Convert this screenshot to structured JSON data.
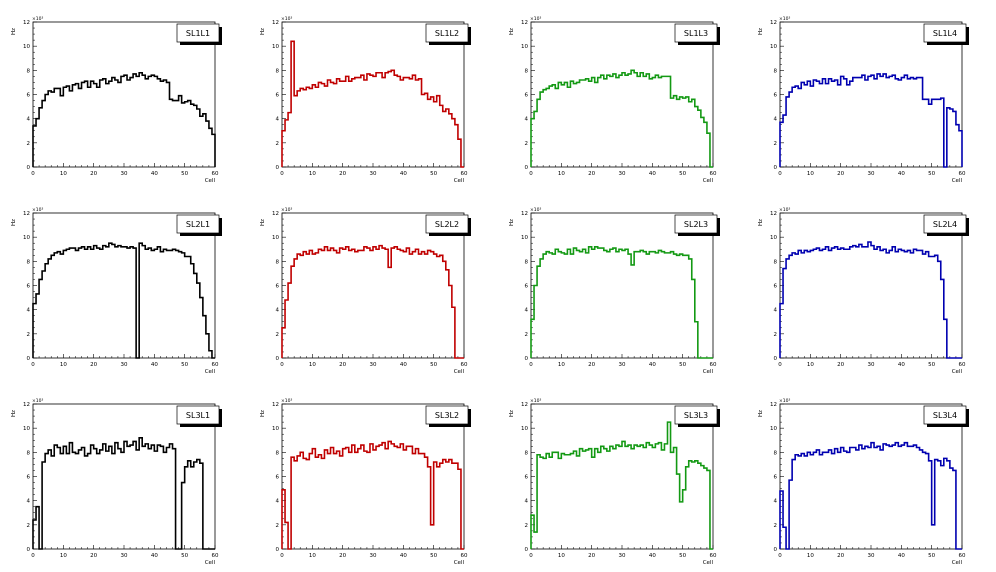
{
  "chart_data": [
    {
      "type": "histogram-step",
      "title": "SL1L1",
      "color": "#000000",
      "xlabel": "Cell",
      "ylabel": "Hz",
      "exponent": "×10³",
      "xlim": [
        0,
        60
      ],
      "ylim": [
        0,
        12
      ],
      "xticks": [
        0,
        10,
        20,
        30,
        40,
        50,
        60
      ],
      "yticks": [
        0,
        2,
        4,
        6,
        8,
        10,
        12
      ],
      "values": [
        3.4,
        4,
        4.9,
        5.5,
        6,
        6.3,
        6.2,
        6.5,
        6.5,
        5.9,
        6.6,
        6.7,
        6.3,
        6.8,
        6.9,
        6.5,
        7,
        7.1,
        6.6,
        7.1,
        6.9,
        6.6,
        7.2,
        7.3,
        6.9,
        7.1,
        7.4,
        7.2,
        7,
        7.5,
        7.6,
        7.2,
        7.4,
        7.7,
        7.5,
        7.8,
        7.6,
        7.3,
        7.5,
        7.6,
        7.5,
        7.3,
        7.1,
        7.2,
        7,
        5.6,
        5.5,
        5.5,
        5.9,
        5.3,
        5.4,
        5.5,
        5.2,
        5.1,
        4.8,
        4.2,
        4.4,
        3.8,
        3.2,
        2.7
      ]
    },
    {
      "type": "histogram-step",
      "title": "SL1L2",
      "color": "#c00000",
      "xlabel": "Cell",
      "ylabel": "Hz",
      "exponent": "×10³",
      "xlim": [
        0,
        60
      ],
      "ylim": [
        0,
        12
      ],
      "xticks": [
        0,
        10,
        20,
        30,
        40,
        50,
        60
      ],
      "yticks": [
        0,
        2,
        4,
        6,
        8,
        10,
        12
      ],
      "values": [
        3,
        3.9,
        4.5,
        10.4,
        5.9,
        6.3,
        6.5,
        6.4,
        6.6,
        6.5,
        6.8,
        6.6,
        7,
        6.9,
        6.7,
        7.2,
        7,
        6.9,
        7.3,
        7.1,
        7.1,
        7.5,
        7.1,
        7.3,
        7.4,
        7.4,
        7.6,
        7.2,
        7.7,
        7.6,
        7.5,
        7.8,
        7.8,
        7.4,
        7.8,
        7.9,
        8,
        7.6,
        7.5,
        7.2,
        7.4,
        7.4,
        7.3,
        7.6,
        7.2,
        7.3,
        6,
        6.1,
        5.6,
        5.8,
        5.4,
        5.9,
        5.1,
        4.6,
        4.8,
        4.4,
        4,
        3.5,
        2.3,
        0
      ]
    },
    {
      "type": "histogram-step",
      "title": "SL1L3",
      "color": "#139913",
      "xlabel": "Cell",
      "ylabel": "Hz",
      "exponent": "×10³",
      "xlim": [
        0,
        60
      ],
      "ylim": [
        0,
        12
      ],
      "xticks": [
        0,
        10,
        20,
        30,
        40,
        50,
        60
      ],
      "yticks": [
        0,
        2,
        4,
        6,
        8,
        10,
        12
      ],
      "values": [
        4,
        4.6,
        5.6,
        6.2,
        6.4,
        6.5,
        6.7,
        6.8,
        6.5,
        7,
        6.8,
        7,
        6.6,
        7.1,
        6.9,
        7,
        7.2,
        7.2,
        7.3,
        7.1,
        7.4,
        7,
        7.4,
        7.6,
        7.3,
        7.6,
        7.5,
        7.7,
        7.4,
        7.6,
        7.8,
        7.6,
        7.7,
        8,
        7.8,
        7.5,
        7.8,
        7.5,
        7.7,
        7.3,
        7.4,
        7.6,
        7.4,
        7.5,
        7.5,
        7.5,
        5.7,
        5.9,
        5.6,
        5.8,
        5.7,
        5.8,
        5.4,
        5.6,
        5,
        4.7,
        4.1,
        3.7,
        2.8,
        0
      ]
    },
    {
      "type": "histogram-step",
      "title": "SL1L4",
      "color": "#0000b0",
      "xlabel": "Cell",
      "ylabel": "Hz",
      "exponent": "×10³",
      "xlim": [
        0,
        60
      ],
      "ylim": [
        0,
        12
      ],
      "xticks": [
        0,
        10,
        20,
        30,
        40,
        50,
        60
      ],
      "yticks": [
        0,
        2,
        4,
        6,
        8,
        10,
        12
      ],
      "values": [
        3.7,
        4.3,
        5.8,
        6.2,
        6.6,
        6.7,
        6.5,
        7,
        6.8,
        7.1,
        6.7,
        7.2,
        7.1,
        6.9,
        7.3,
        6.9,
        7.3,
        7.1,
        7.2,
        6.8,
        7.5,
        7.3,
        6.8,
        7.1,
        7.4,
        7.4,
        7.4,
        7.6,
        7.2,
        7.5,
        7.6,
        7.3,
        7.7,
        7.5,
        7.7,
        7.4,
        7.5,
        7.6,
        7.3,
        7.2,
        7.4,
        7.6,
        7.3,
        7.4,
        7.3,
        7.4,
        7.4,
        5.6,
        5.6,
        5.2,
        5.6,
        5.6,
        5.6,
        5.7,
        0,
        4.9,
        4.8,
        4.6,
        3.5,
        3
      ]
    },
    {
      "type": "histogram-step",
      "title": "SL2L1",
      "color": "#000000",
      "xlabel": "Cell",
      "ylabel": "Hz",
      "exponent": "×10³",
      "xlim": [
        0,
        60
      ],
      "ylim": [
        0,
        12
      ],
      "xticks": [
        0,
        10,
        20,
        30,
        40,
        50,
        60
      ],
      "yticks": [
        0,
        2,
        4,
        6,
        8,
        10,
        12
      ],
      "values": [
        4.5,
        5.3,
        6.5,
        7.2,
        7.8,
        8.2,
        8.5,
        8.7,
        8.8,
        8.6,
        8.9,
        9,
        9.1,
        9.1,
        8.9,
        9.1,
        9.2,
        9,
        9.2,
        9,
        9.3,
        9.1,
        9,
        9.3,
        9.2,
        9.5,
        9.4,
        9.2,
        9.3,
        9.2,
        9.2,
        9.1,
        9.2,
        9.1,
        0,
        9.5,
        9.3,
        9,
        9.1,
        8.9,
        9,
        9.2,
        8.8,
        9,
        8.9,
        8.9,
        9,
        8.9,
        8.8,
        8.7,
        8.4,
        8.4,
        7.8,
        7,
        6.2,
        5,
        3.5,
        2,
        0.6,
        0
      ]
    },
    {
      "type": "histogram-step",
      "title": "SL2L2",
      "color": "#c00000",
      "xlabel": "Cell",
      "ylabel": "Hz",
      "exponent": "×10³",
      "xlim": [
        0,
        60
      ],
      "ylim": [
        0,
        12
      ],
      "xticks": [
        0,
        10,
        20,
        30,
        40,
        50,
        60
      ],
      "yticks": [
        0,
        2,
        4,
        6,
        8,
        10,
        12
      ],
      "values": [
        2.5,
        4.8,
        6.2,
        7.6,
        8.2,
        8.6,
        8.5,
        8.8,
        8.6,
        8.9,
        8.6,
        8.7,
        9,
        8.9,
        9.2,
        8.9,
        9.1,
        8.9,
        8.7,
        9.1,
        9,
        9.2,
        8.9,
        9,
        8.8,
        8.9,
        8.9,
        9.2,
        9.1,
        8.9,
        9.2,
        9,
        9.3,
        9.1,
        9,
        7.5,
        9.1,
        9.2,
        9,
        8.9,
        8.8,
        9.1,
        8.6,
        8.8,
        9,
        8.6,
        8.8,
        8.6,
        8.9,
        8.8,
        8.6,
        8.4,
        8.5,
        8,
        7.3,
        6,
        4.2,
        0,
        0,
        0
      ]
    },
    {
      "type": "histogram-step",
      "title": "SL2L3",
      "color": "#139913",
      "xlabel": "Cell",
      "ylabel": "Hz",
      "exponent": "×10³",
      "xlim": [
        0,
        60
      ],
      "ylim": [
        0,
        12
      ],
      "xticks": [
        0,
        10,
        20,
        30,
        40,
        50,
        60
      ],
      "yticks": [
        0,
        2,
        4,
        6,
        8,
        10,
        12
      ],
      "values": [
        3.2,
        6,
        7.6,
        8.2,
        8.6,
        8.8,
        8.7,
        8.6,
        9,
        8.8,
        8.7,
        8.6,
        9,
        8.6,
        9.1,
        8.9,
        8.8,
        9,
        8.7,
        9.2,
        9,
        9.2,
        9.1,
        9.1,
        8.9,
        8.8,
        9,
        9.1,
        8.8,
        9,
        8.9,
        9,
        8.6,
        7.7,
        8.8,
        8.8,
        8.9,
        8.8,
        8.6,
        8.8,
        8.8,
        8.7,
        8.9,
        8.8,
        8.7,
        8.7,
        8.8,
        8.6,
        8.5,
        8.6,
        8.5,
        8.5,
        8.2,
        6.5,
        3,
        0,
        0,
        0,
        0,
        0
      ]
    },
    {
      "type": "histogram-step",
      "title": "SL2L4",
      "color": "#0000b0",
      "xlabel": "Cell",
      "ylabel": "Hz",
      "exponent": "×10³",
      "xlim": [
        0,
        60
      ],
      "ylim": [
        0,
        12
      ],
      "xticks": [
        0,
        10,
        20,
        30,
        40,
        50,
        60
      ],
      "yticks": [
        0,
        2,
        4,
        6,
        8,
        10,
        12
      ],
      "values": [
        4.5,
        7.4,
        8.2,
        8.5,
        8.7,
        8.6,
        8.9,
        8.7,
        8.9,
        8.8,
        8.9,
        9,
        9.1,
        8.9,
        9,
        9.2,
        8.9,
        9.1,
        9.2,
        9,
        9.1,
        9,
        9,
        9.2,
        9.3,
        9.2,
        9.4,
        9.2,
        9.2,
        9.6,
        9.3,
        9,
        9.2,
        8.9,
        9,
        8.7,
        8.9,
        9.2,
        8.8,
        9,
        8.9,
        8.8,
        8.9,
        8.7,
        9,
        8.9,
        8.9,
        8.6,
        8.8,
        8.4,
        8.4,
        8.5,
        8,
        6.5,
        3.2,
        0,
        0,
        0,
        0,
        0
      ]
    },
    {
      "type": "histogram-step",
      "title": "SL3L1",
      "color": "#000000",
      "xlabel": "Cell",
      "ylabel": "Hz",
      "exponent": "×10³",
      "xlim": [
        0,
        60
      ],
      "ylim": [
        0,
        12
      ],
      "xticks": [
        0,
        10,
        20,
        30,
        40,
        50,
        60
      ],
      "yticks": [
        0,
        2,
        4,
        6,
        8,
        10,
        12
      ],
      "values": [
        2.4,
        3.5,
        0,
        7.2,
        7.9,
        8.2,
        7.7,
        8.6,
        8.4,
        7.9,
        8.5,
        7.9,
        8.8,
        8,
        7.9,
        8.2,
        8.4,
        7.7,
        7.9,
        8.6,
        8.3,
        7.9,
        8.2,
        8.7,
        8.1,
        8.5,
        7.9,
        8.8,
        8.3,
        8,
        8.9,
        8.5,
        8.6,
        8.9,
        8.2,
        9.2,
        8.5,
        8.7,
        8.3,
        8.6,
        8.1,
        8.6,
        8.5,
        8,
        8.4,
        8.7,
        8.3,
        0,
        0,
        5.5,
        6.8,
        7.3,
        6.8,
        7.2,
        7.4,
        7.1,
        0,
        0,
        0,
        0
      ]
    },
    {
      "type": "histogram-step",
      "title": "SL3L2",
      "color": "#c00000",
      "xlabel": "Cell",
      "ylabel": "Hz",
      "exponent": "×10³",
      "xlim": [
        0,
        60
      ],
      "ylim": [
        0,
        12
      ],
      "xticks": [
        0,
        10,
        20,
        30,
        40,
        50,
        60
      ],
      "yticks": [
        0,
        2,
        4,
        6,
        8,
        10,
        12
      ],
      "values": [
        4.9,
        2.2,
        0,
        7.6,
        7.3,
        7.7,
        8,
        7.5,
        7.4,
        7.9,
        8.3,
        7.6,
        7.8,
        7.5,
        8.2,
        7.9,
        8.4,
        7.9,
        8.1,
        7.7,
        8.3,
        8.4,
        8,
        8.6,
        8,
        8.3,
        8.6,
        8.1,
        8,
        8.7,
        8.2,
        8.5,
        8.6,
        8.8,
        8.3,
        8.9,
        8.7,
        8.5,
        8.4,
        8.7,
        8.2,
        8.5,
        8.5,
        7.9,
        8.3,
        7.9,
        7.9,
        7.6,
        6.8,
        2,
        7.2,
        6.8,
        7.1,
        7.4,
        7.2,
        7.4,
        7.1,
        7.1,
        6.6,
        0
      ]
    },
    {
      "type": "histogram-step",
      "title": "SL3L3",
      "color": "#139913",
      "xlabel": "Cell",
      "ylabel": "Hz",
      "exponent": "×10³",
      "xlim": [
        0,
        60
      ],
      "ylim": [
        0,
        12
      ],
      "xticks": [
        0,
        10,
        20,
        30,
        40,
        50,
        60
      ],
      "yticks": [
        0,
        2,
        4,
        6,
        8,
        10,
        12
      ],
      "values": [
        2.8,
        1.4,
        7.8,
        7.6,
        7.5,
        7.9,
        7.6,
        8,
        8,
        7.5,
        7.9,
        7.8,
        7.8,
        7.9,
        8.1,
        7.7,
        8.3,
        8.1,
        8.2,
        8.3,
        7.6,
        8.3,
        8,
        8.5,
        8.3,
        8.1,
        8.5,
        8.3,
        8.6,
        8.5,
        8.9,
        8.5,
        8.6,
        8.3,
        8.6,
        8.5,
        8.6,
        8.4,
        8.8,
        8.6,
        8.4,
        8.7,
        8.8,
        8.2,
        8.7,
        10.5,
        8,
        8.4,
        6.2,
        3.9,
        4.9,
        6.8,
        7.3,
        7.2,
        7.3,
        7.1,
        6.9,
        6.7,
        6.5,
        0
      ]
    },
    {
      "type": "histogram-step",
      "title": "SL3L4",
      "color": "#0000b0",
      "xlabel": "Cell",
      "ylabel": "Hz",
      "exponent": "×10³",
      "xlim": [
        0,
        60
      ],
      "ylim": [
        0,
        12
      ],
      "xticks": [
        0,
        10,
        20,
        30,
        40,
        50,
        60
      ],
      "yticks": [
        0,
        2,
        4,
        6,
        8,
        10,
        12
      ],
      "values": [
        4.8,
        1.8,
        0,
        5.7,
        7.4,
        7.8,
        7.7,
        7.9,
        7.7,
        8,
        7.8,
        8,
        8.2,
        7.8,
        8,
        8,
        8.2,
        7.9,
        8.3,
        8,
        8.4,
        8.1,
        8,
        8.4,
        8.4,
        8.2,
        8.6,
        8.3,
        8.5,
        8.4,
        8.8,
        8.4,
        8.5,
        8.2,
        8.7,
        8.6,
        8.5,
        8.6,
        8.8,
        8.5,
        8.6,
        8.8,
        8.5,
        8.5,
        8.6,
        8.4,
        8.2,
        8,
        7.9,
        7.3,
        2,
        7.4,
        7.3,
        6.9,
        7.5,
        7.3,
        6.7,
        6.5,
        0,
        0
      ]
    }
  ]
}
